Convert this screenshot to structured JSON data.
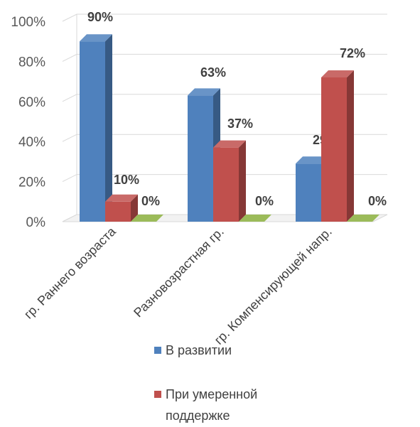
{
  "chart_data": {
    "type": "bar",
    "categories": [
      "гр. Раннего возраста",
      "Разновозрастная гр.",
      "гр. Компенсирующей напр."
    ],
    "series": [
      {
        "name": "В развитии",
        "values": [
          90,
          63,
          29
        ],
        "labels": [
          "90%",
          "63%",
          "29%"
        ],
        "color": "#4F81BD"
      },
      {
        "name": "При умеренной поддержке",
        "values": [
          10,
          37,
          72
        ],
        "labels": [
          "10%",
          "37%",
          "72%"
        ],
        "color": "#C0504D"
      },
      {
        "name": "",
        "values": [
          0,
          0,
          0
        ],
        "labels": [
          "0%",
          "0%",
          "0%"
        ],
        "color": "#9BBB59"
      }
    ],
    "y_ticks": [
      "0%",
      "20%",
      "40%",
      "60%",
      "80%",
      "100%"
    ],
    "ylim": [
      0,
      100
    ],
    "grid": true,
    "legend": [
      "В развитии",
      "При умеренной поддержке"
    ]
  }
}
